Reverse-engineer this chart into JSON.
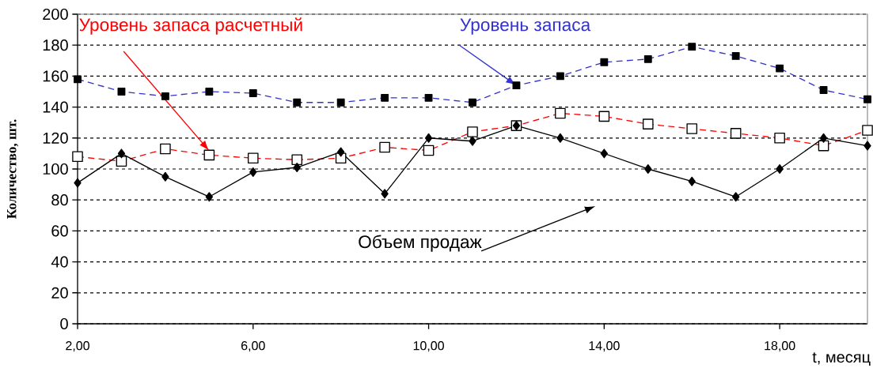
{
  "chart_data": {
    "type": "line",
    "xlabel": "t, месяц",
    "ylabel": "Количество, шт.",
    "x": [
      2,
      3,
      4,
      5,
      6,
      7,
      8,
      9,
      10,
      11,
      12,
      13,
      14,
      15,
      16,
      17,
      18,
      19,
      20
    ],
    "xlim": [
      2,
      20
    ],
    "xticks": [
      {
        "value": 2,
        "label": "2,00"
      },
      {
        "value": 6,
        "label": "6,00"
      },
      {
        "value": 10,
        "label": "10,00"
      },
      {
        "value": 14,
        "label": "14,00"
      },
      {
        "value": 18,
        "label": "18,00"
      }
    ],
    "ylim": [
      0,
      200
    ],
    "yticks": [
      0,
      20,
      40,
      60,
      80,
      100,
      120,
      140,
      160,
      180,
      200
    ],
    "grid": "y",
    "legend": false,
    "series": [
      {
        "name": "Уровень запаса",
        "color": "#3333cc",
        "marker": "square",
        "line_style": "dashed",
        "values": [
          158,
          150,
          147,
          150,
          149,
          143,
          143,
          146,
          146,
          143,
          154,
          160,
          169,
          171,
          179,
          173,
          165,
          151,
          145
        ]
      },
      {
        "name": "Уровень запаса расчетный",
        "color": "#ff0000",
        "marker": "square",
        "line_style": "dashed",
        "values": [
          108,
          105,
          113,
          109,
          107,
          106,
          107,
          114,
          112,
          124,
          128,
          136,
          134,
          129,
          126,
          123,
          120,
          115,
          125
        ]
      },
      {
        "name": "Объем продаж",
        "color": "#000000",
        "marker": "diamond",
        "line_style": "solid",
        "values": [
          91,
          110,
          95,
          82,
          98,
          101,
          111,
          84,
          120,
          118,
          128,
          120,
          110,
          100,
          92,
          82,
          100,
          120,
          115
        ]
      }
    ]
  }
}
